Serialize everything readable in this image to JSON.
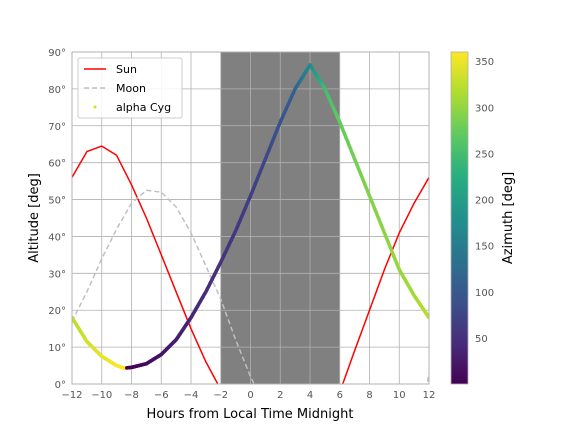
{
  "chart_data": {
    "type": "line",
    "title": "",
    "xlabel": "Hours from Local Time Midnight",
    "ylabel": "Altitude [deg]",
    "xlim": [
      -12,
      12
    ],
    "ylim": [
      0,
      90
    ],
    "xticks": [
      -12,
      -10,
      -8,
      -6,
      -4,
      -2,
      0,
      2,
      4,
      6,
      8,
      10,
      12
    ],
    "xtick_labels": [
      "−12",
      "−10",
      "−8",
      "−6",
      "−4",
      "−2",
      "0",
      "2",
      "4",
      "6",
      "8",
      "10",
      "12"
    ],
    "yticks": [
      0,
      10,
      20,
      30,
      40,
      50,
      60,
      70,
      80,
      90
    ],
    "ytick_labels": [
      "0°",
      "10°",
      "20°",
      "30°",
      "40°",
      "50°",
      "60°",
      "70°",
      "80°",
      "90°"
    ],
    "grid": true,
    "legend_position": "top-left",
    "night_shade": {
      "from": -2,
      "to": 6,
      "color": "#808080"
    },
    "series": [
      {
        "name": "Sun",
        "style": "solid",
        "color": "#ff0000",
        "x": [
          -12,
          -11,
          -10,
          -9,
          -8,
          -7,
          -6,
          -5,
          -4,
          -3,
          -2.2,
          -2,
          6,
          6.2,
          7,
          8,
          9,
          10,
          11,
          12
        ],
        "y": [
          56,
          63,
          64.5,
          62,
          54,
          45,
          35,
          25,
          15,
          6,
          0,
          -2,
          -2,
          0,
          9,
          20,
          31,
          41,
          49,
          56
        ]
      },
      {
        "name": "Moon",
        "style": "dashed",
        "color": "#c0c0c0",
        "x": [
          -12,
          -11,
          -10,
          -9,
          -8,
          -7,
          -6,
          -5,
          -4,
          -3,
          -2,
          -1,
          0,
          0.5,
          11.8,
          12
        ],
        "y": [
          17,
          25,
          34,
          42,
          49,
          52.5,
          52,
          48,
          41,
          32,
          23,
          12,
          2,
          -2,
          -2,
          3
        ]
      },
      {
        "name": "alpha Cyg",
        "style": "points",
        "colorbar_label": "Azimuth [deg]",
        "colorbar_ticks": [
          50,
          100,
          150,
          200,
          250,
          300,
          350
        ],
        "colorbar_range": [
          0,
          360
        ],
        "x": [
          -12,
          -11,
          -10,
          -9,
          -8.5,
          -8,
          -7,
          -6,
          -5,
          -4,
          -3,
          -2,
          -1,
          0,
          1,
          2,
          3,
          4,
          5,
          6,
          7,
          8,
          9,
          10,
          11,
          12
        ],
        "y": [
          18,
          11.5,
          7.5,
          5,
          4.3,
          4.5,
          5.5,
          8,
          12,
          18,
          25,
          33,
          41.5,
          51,
          61,
          71,
          80,
          86.5,
          80,
          71,
          61,
          51,
          41,
          31,
          24,
          18
        ],
        "azimuth": [
          320,
          335,
          347,
          356,
          359,
          2,
          10,
          20,
          30,
          38,
          45,
          52,
          58,
          66,
          76,
          90,
          112,
          170,
          248,
          272,
          283,
          290,
          296,
          303,
          310,
          320
        ]
      }
    ]
  }
}
